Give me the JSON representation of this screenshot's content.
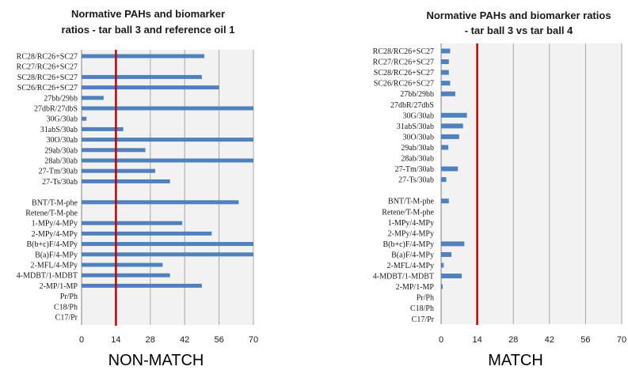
{
  "chart_data": [
    {
      "type": "bar",
      "orientation": "horizontal",
      "title_lines": [
        "Normative PAHs and biomarker",
        "ratios  - tar ball 3 and reference oil 1"
      ],
      "caption": "NON-MATCH",
      "categories": [
        "RC28/RC26+SC27",
        "RC27/RC26+SC27",
        "SC28/RC26+SC27",
        "SC26/RC26+SC27",
        "27bb/29bb",
        "27dbR/27dbS",
        "30G/30ab",
        "31abS/30ab",
        "30O/30ab",
        "29ab/30ab",
        "28ab/30ab",
        "27-Tm/30ab",
        "27-Ts/30ab",
        "",
        "BNT/T-M-phe",
        "Retene/T-M-phe",
        "1-MPy/4-MPy",
        "2-MPy/4-MPy",
        "B(b+c)F/4-MPy",
        "B(a)F/4-MPy",
        "2-MFL/4-MPy",
        "4-MDBT/1-MDBT",
        "2-MP/1-MP",
        "Pr/Ph",
        "C18/Ph",
        "C17/Pr"
      ],
      "values": [
        50,
        0,
        49,
        56,
        9,
        70,
        2,
        17,
        70,
        26,
        70,
        30,
        36,
        null,
        64,
        0,
        41,
        53,
        70,
        70,
        33,
        36,
        49,
        0,
        0,
        0
      ],
      "xlim": [
        0,
        70
      ],
      "xticks": [
        0,
        14,
        28,
        42,
        56,
        70
      ],
      "threshold": 14,
      "grid": "vertical",
      "colors": {
        "bar": "#4f81bd",
        "threshold": "#c00000",
        "grid": "#a6a6a6",
        "plot_bg": "#f2f2f2",
        "axis": "#808080"
      }
    },
    {
      "type": "bar",
      "orientation": "horizontal",
      "title_lines": [
        "Normative PAHs and biomarker ratios",
        "-  tar ball 3 vs tar ball 4"
      ],
      "caption": "MATCH",
      "categories": [
        "RC28/RC26+SC27",
        "RC27/RC26+SC27",
        "SC28/RC26+SC27",
        "SC26/RC26+SC27",
        "27bb/29bb",
        "27dbR/27dbS",
        "30G/30ab",
        "31abS/30ab",
        "30O/30ab",
        "29ab/30ab",
        "28ab/30ab",
        "27-Tm/30ab",
        "27-Ts/30ab",
        "",
        "BNT/T-M-phe",
        "Retene/T-M-phe",
        "1-MPy/4-MPy",
        "2-MPy/4-MPy",
        "B(b+c)F/4-MPy",
        "B(a)F/4-MPy",
        "2-MFL/4-MPy",
        "4-MDBT/1-MDBT",
        "2-MP/1-MP",
        "Pr/Ph",
        "C18/Ph",
        "C17/Pr"
      ],
      "values": [
        3.5,
        3,
        3,
        3.5,
        5.5,
        0,
        10,
        8.5,
        7,
        2.8,
        0,
        6.5,
        2,
        null,
        3,
        0,
        0,
        0,
        9,
        4,
        1,
        8,
        0.6,
        0,
        0,
        0
      ],
      "xlim": [
        0,
        70
      ],
      "xticks": [
        0,
        14,
        28,
        42,
        56,
        70
      ],
      "threshold": 14,
      "grid": "vertical",
      "colors": {
        "bar": "#4f81bd",
        "threshold": "#c00000",
        "grid": "#a6a6a6",
        "plot_bg": "#f2f2f2",
        "axis": "#808080"
      }
    }
  ]
}
